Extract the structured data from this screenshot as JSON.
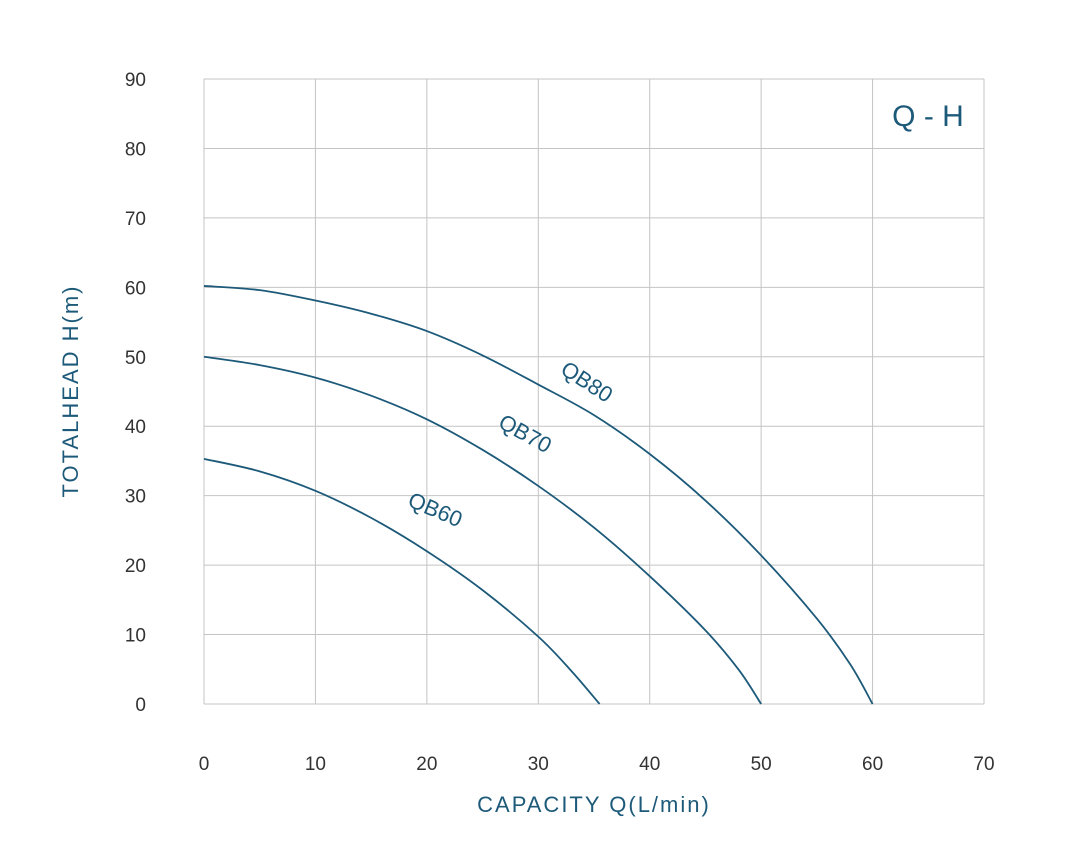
{
  "chart_data": {
    "type": "line",
    "title": "Q - H",
    "xlabel": "CAPACITY  Q(L/min)",
    "ylabel": "TOTALHEAD H(m)",
    "xlim": [
      0,
      70
    ],
    "ylim": [
      0,
      90
    ],
    "x_ticks": [
      "0",
      "10",
      "20",
      "30",
      "40",
      "50",
      "60",
      "70"
    ],
    "y_ticks": [
      "0",
      "10",
      "20",
      "30",
      "40",
      "50",
      "60",
      "70",
      "80",
      "90"
    ],
    "grid": true,
    "colors": {
      "curve": "#1d5a7a",
      "grid": "#c4c4c4",
      "text": "#333333"
    },
    "series": [
      {
        "name": "QB60",
        "x": [
          0,
          5,
          10,
          15,
          20,
          25,
          30,
          33,
          35.5
        ],
        "y": [
          35.3,
          33.5,
          30.7,
          26.8,
          22.0,
          16.4,
          9.7,
          4.7,
          0
        ]
      },
      {
        "name": "QB70",
        "x": [
          0,
          5,
          10,
          15,
          20,
          25,
          30,
          35,
          40,
          45,
          48,
          50
        ],
        "y": [
          50,
          48.8,
          47.0,
          44.4,
          41.0,
          36.6,
          31.4,
          25.4,
          18.4,
          10.6,
          4.9,
          0
        ]
      },
      {
        "name": "QB80",
        "x": [
          0,
          5,
          10,
          15,
          20,
          25,
          30,
          35,
          40,
          45,
          50,
          55,
          58,
          60
        ],
        "y": [
          60.2,
          59.6,
          58.1,
          56.2,
          53.7,
          50.2,
          46.0,
          41.6,
          36.0,
          29.3,
          21.4,
          12.3,
          5.7,
          0
        ]
      }
    ]
  }
}
